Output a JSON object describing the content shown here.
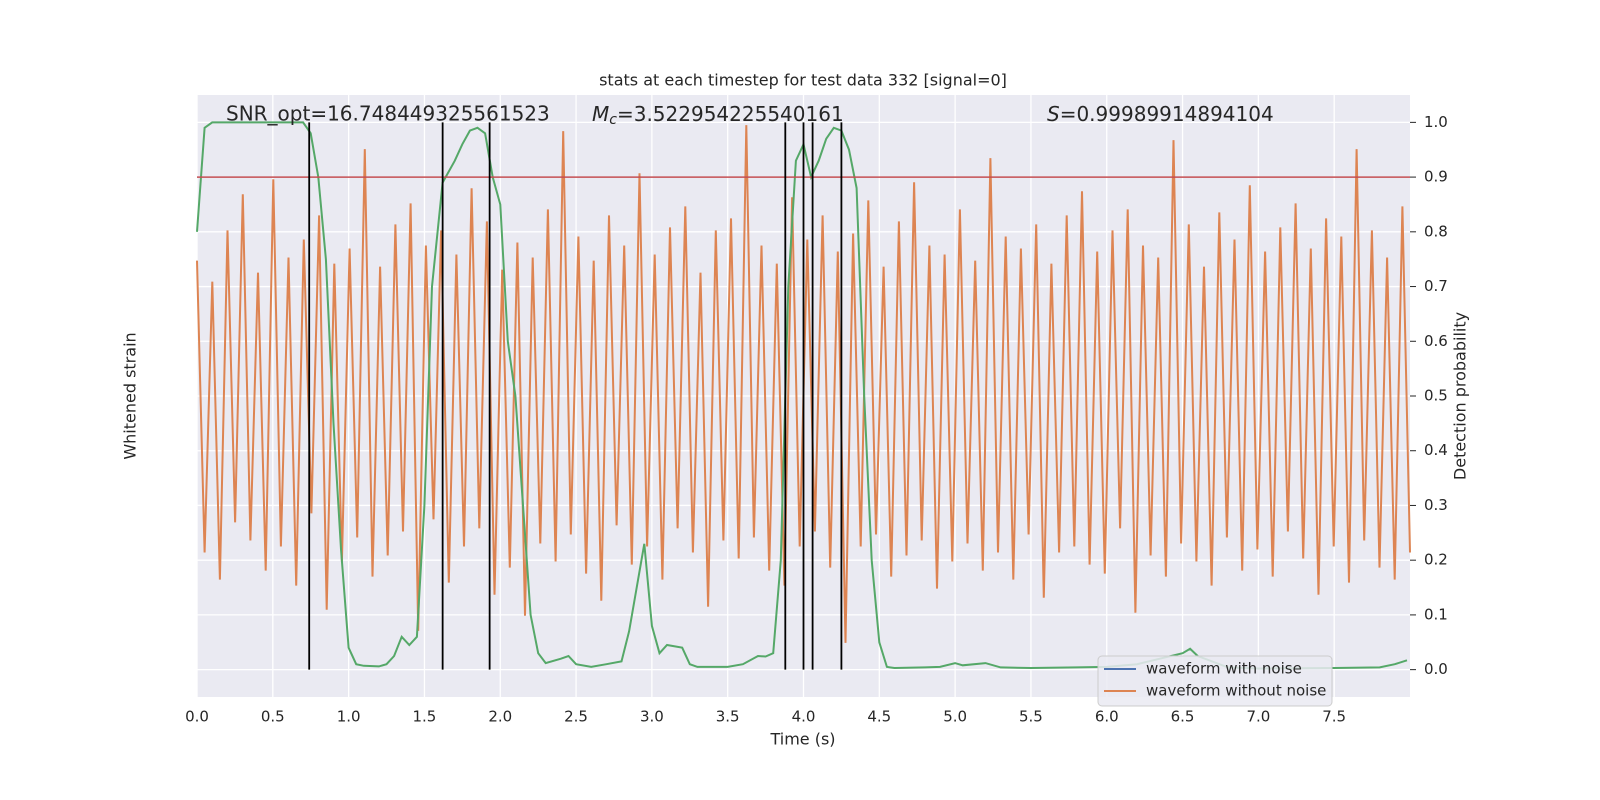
{
  "chart_data": {
    "type": "line",
    "title": "stats at each timestep for test data 332 [signal=0]",
    "xlabel": "Time (s)",
    "ylabel": "Whitened strain",
    "y2label": "Detection probability",
    "annotations": [
      {
        "text": "SNR_opt=16.748449325561523"
      },
      {
        "symbol": "M",
        "subscript": "c",
        "text": "=3.522954225540161"
      },
      {
        "symbol": "S",
        "text": "=0.99989914894104"
      }
    ],
    "xlim": [
      0,
      8
    ],
    "xticks": [
      {
        "value": 0,
        "label": "0.0"
      },
      {
        "value": 0.5,
        "label": "0.5"
      },
      {
        "value": 1,
        "label": "1.0"
      },
      {
        "value": 1.5,
        "label": "1.5"
      },
      {
        "value": 2,
        "label": "2.0"
      },
      {
        "value": 2.5,
        "label": "2.5"
      },
      {
        "value": 3,
        "label": "3.0"
      },
      {
        "value": 3.5,
        "label": "3.5"
      },
      {
        "value": 4,
        "label": "4.0"
      },
      {
        "value": 4.5,
        "label": "4.5"
      },
      {
        "value": 5,
        "label": "5.0"
      },
      {
        "value": 5.5,
        "label": "5.5"
      },
      {
        "value": 6,
        "label": "6.0"
      },
      {
        "value": 6.5,
        "label": "6.5"
      },
      {
        "value": 7,
        "label": "7.0"
      },
      {
        "value": 7.5,
        "label": "7.5"
      }
    ],
    "ylim": [
      -1,
      1
    ],
    "y2lim": [
      -0.05,
      1.05
    ],
    "y2ticks": [
      {
        "value": 0,
        "label": "0.0"
      },
      {
        "value": 0.1,
        "label": "0.1"
      },
      {
        "value": 0.2,
        "label": "0.2"
      },
      {
        "value": 0.3,
        "label": "0.3"
      },
      {
        "value": 0.4,
        "label": "0.4"
      },
      {
        "value": 0.5,
        "label": "0.5"
      },
      {
        "value": 0.6,
        "label": "0.6"
      },
      {
        "value": 0.7,
        "label": "0.7"
      },
      {
        "value": 0.8,
        "label": "0.8"
      },
      {
        "value": 0.9,
        "label": "0.9"
      },
      {
        "value": 1,
        "label": "1.0"
      }
    ],
    "grid": true,
    "legend": "lower right",
    "series": [
      {
        "name": "waveform with noise",
        "color": "#4c72b0"
      },
      {
        "name": "waveform without noise",
        "color": "#dd8452",
        "values": [
          0.45,
          -0.52,
          0.38,
          -0.61,
          0.55,
          -0.42,
          0.67,
          -0.48,
          0.41,
          -0.58,
          0.72,
          -0.5,
          0.46,
          -0.63,
          0.52,
          -0.39,
          0.6,
          -0.71,
          0.44,
          -0.55,
          0.49,
          -0.47,
          0.82,
          -0.6,
          0.43,
          -0.53,
          0.57,
          -0.45,
          0.64,
          -0.78,
          0.5,
          -0.41,
          0.55,
          -0.62,
          0.47,
          -0.5,
          0.69,
          -0.44,
          0.58,
          -0.66,
          0.42,
          -0.57,
          0.51,
          -0.73,
          0.46,
          -0.49,
          0.62,
          -0.55,
          0.88,
          -0.46,
          0.53,
          -0.59,
          0.45,
          -0.68,
          0.6,
          -0.43,
          0.5,
          -0.56,
          0.74,
          -0.5,
          0.47,
          -0.61,
          0.56,
          -0.44,
          0.63,
          -0.52,
          0.41,
          -0.7,
          0.55,
          -0.48,
          0.59,
          -0.54,
          0.9,
          -0.47,
          0.5,
          -0.58,
          0.44,
          -0.63,
          0.66,
          -0.5,
          0.52,
          -0.45,
          0.6,
          -0.57,
          0.48,
          -0.82,
          0.54,
          -0.5,
          0.65,
          -0.46,
          0.43,
          -0.6,
          0.58,
          -0.53,
          0.71,
          -0.48,
          0.5,
          -0.64,
          0.47,
          -0.55,
          0.62,
          -0.49,
          0.45,
          -0.58,
          0.79,
          -0.52,
          0.53,
          -0.61,
          0.49,
          -0.46,
          0.57,
          -0.67,
          0.44,
          -0.52,
          0.6,
          -0.5,
          0.68,
          -0.56,
          0.48,
          -0.59,
          0.55,
          -0.44,
          0.62,
          -0.72,
          0.5,
          -0.53,
          0.46,
          -0.6,
          0.85,
          -0.49,
          0.57,
          -0.55,
          0.43,
          -0.63,
          0.61,
          -0.47,
          0.52,
          -0.58,
          0.7,
          -0.51,
          0.48,
          -0.6,
          0.56,
          -0.45,
          0.64,
          -0.54,
          0.49,
          -0.66,
          0.59,
          -0.5,
          0.53,
          -0.62,
          0.82,
          -0.48,
          0.55,
          -0.57,
          0.46,
          -0.61,
          0.63,
          -0.52
        ]
      }
    ],
    "probability": {
      "color": "#55a868",
      "axis": "y2",
      "x": [
        0,
        0.05,
        0.1,
        0.7,
        0.75,
        0.8,
        0.85,
        0.9,
        0.95,
        1.0,
        1.05,
        1.1,
        1.2,
        1.25,
        1.3,
        1.35,
        1.4,
        1.45,
        1.5,
        1.55,
        1.62,
        1.7,
        1.75,
        1.8,
        1.85,
        1.9,
        1.95,
        2.0,
        2.05,
        2.1,
        2.15,
        2.2,
        2.25,
        2.3,
        2.4,
        2.45,
        2.5,
        2.6,
        2.7,
        2.8,
        2.85,
        2.95,
        3.0,
        3.05,
        3.1,
        3.2,
        3.25,
        3.3,
        3.5,
        3.6,
        3.7,
        3.75,
        3.8,
        3.85,
        3.9,
        3.95,
        4.0,
        4.05,
        4.1,
        4.15,
        4.2,
        4.25,
        4.3,
        4.35,
        4.4,
        4.45,
        4.5,
        4.55,
        4.6,
        4.8,
        4.9,
        5.0,
        5.05,
        5.2,
        5.3,
        5.5,
        5.8,
        6.0,
        6.2,
        6.5,
        6.55,
        6.6,
        6.8,
        7.0,
        7.5,
        7.8,
        7.9,
        7.98
      ],
      "values": [
        0.8,
        0.99,
        1.0,
        1.0,
        0.98,
        0.9,
        0.75,
        0.45,
        0.22,
        0.04,
        0.01,
        0.007,
        0.006,
        0.01,
        0.025,
        0.06,
        0.045,
        0.06,
        0.3,
        0.7,
        0.89,
        0.93,
        0.96,
        0.985,
        0.99,
        0.98,
        0.9,
        0.85,
        0.6,
        0.5,
        0.3,
        0.1,
        0.03,
        0.012,
        0.02,
        0.025,
        0.01,
        0.005,
        0.01,
        0.015,
        0.07,
        0.23,
        0.08,
        0.03,
        0.045,
        0.04,
        0.01,
        0.005,
        0.005,
        0.01,
        0.025,
        0.024,
        0.03,
        0.2,
        0.7,
        0.93,
        0.96,
        0.9,
        0.93,
        0.97,
        0.99,
        0.985,
        0.95,
        0.88,
        0.5,
        0.2,
        0.05,
        0.005,
        0.003,
        0.004,
        0.005,
        0.012,
        0.008,
        0.012,
        0.004,
        0.003,
        0.004,
        0.005,
        0.01,
        0.03,
        0.038,
        0.025,
        0.004,
        0.002,
        0.003,
        0.004,
        0.01,
        0.017
      ]
    },
    "vlines": {
      "color": "#000000",
      "x": [
        0.74,
        1.62,
        1.93,
        3.88,
        4.0,
        4.06,
        4.25
      ]
    },
    "threshold": {
      "color": "#c44e52",
      "value": 0.9
    }
  }
}
